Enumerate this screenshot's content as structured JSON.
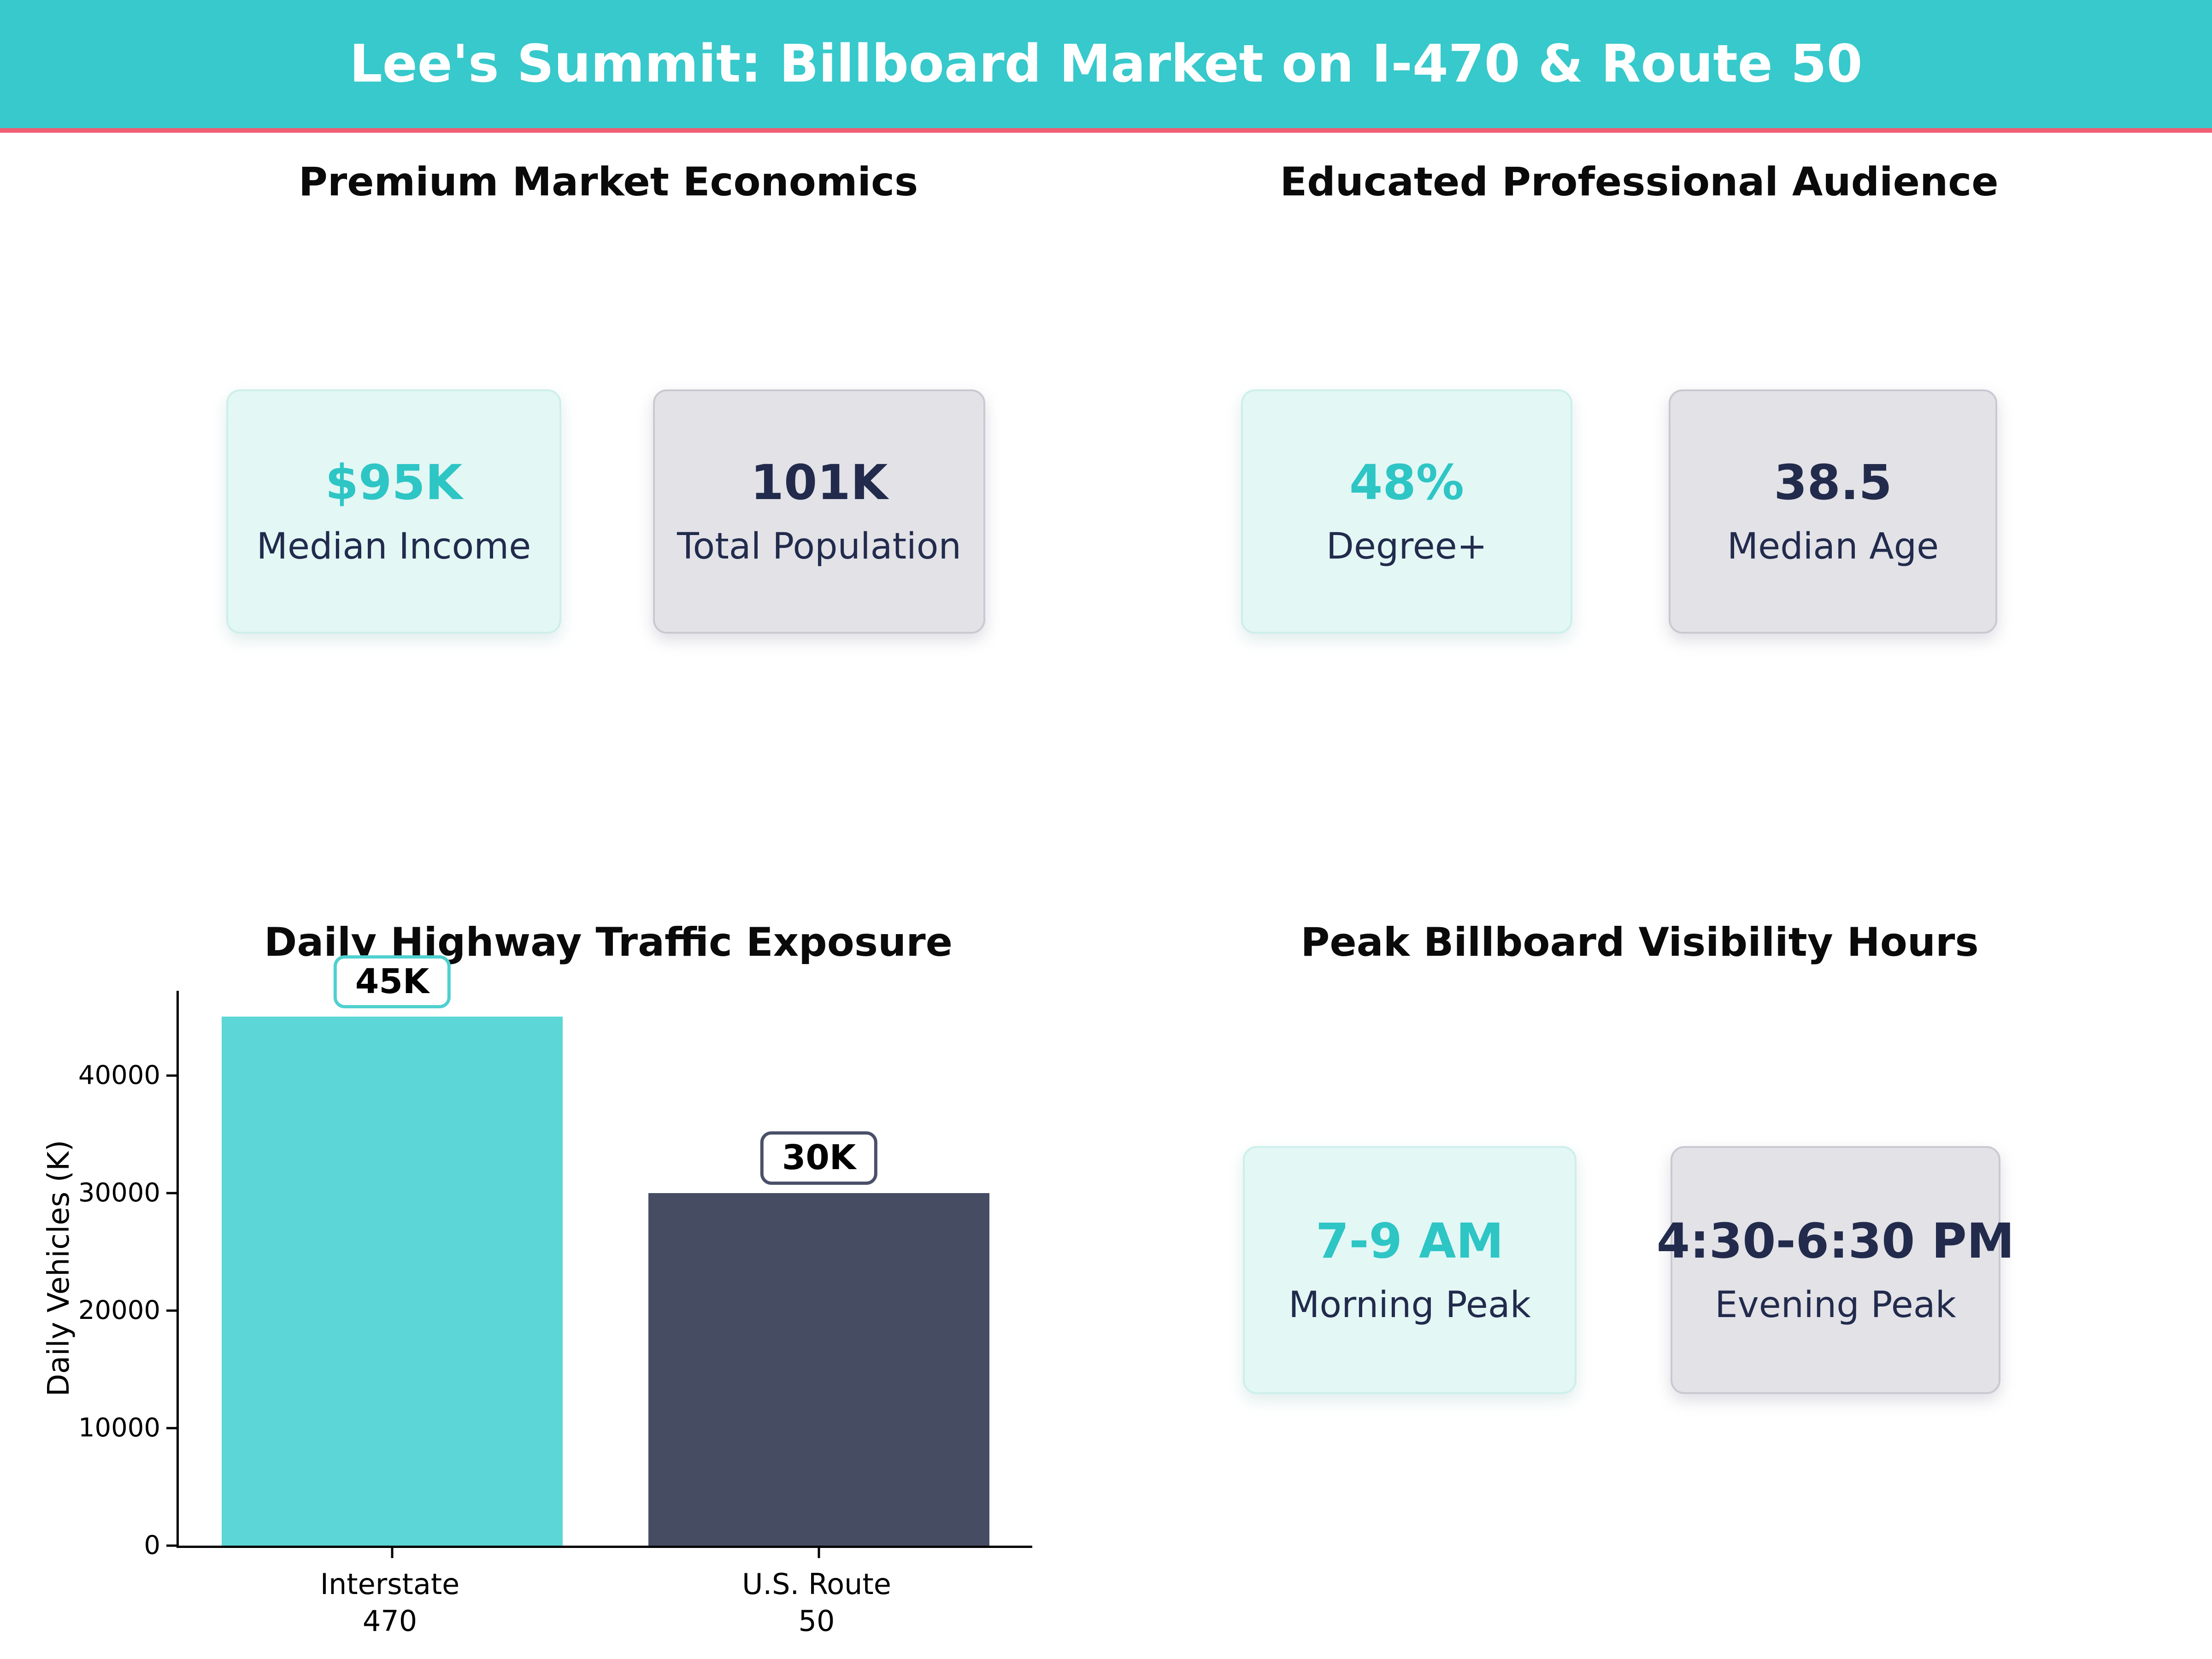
{
  "page": {
    "title": "Lee's Summit: Billboard Market on I-470 & Route 50"
  },
  "colors": {
    "header_bg": "#37C9CB",
    "header_text": "#FFFFFF",
    "divider_pink": "#EF5E74",
    "accent_teal": "#2EC5C5",
    "navy_text": "#222B4C",
    "card_teal_bg": "#E3F7F5",
    "card_gray_bg": "#E2E2E7",
    "bar_teal": "#5CD6D6",
    "bar_navy": "#464D63"
  },
  "sections": {
    "economics": {
      "title": "Premium Market Economics",
      "cards": [
        {
          "value": "$95K",
          "label": "Median Income"
        },
        {
          "value": "101K",
          "label": "Total Population"
        }
      ]
    },
    "audience": {
      "title": "Educated Professional Audience",
      "cards": [
        {
          "value": "48%",
          "label": "Degree+"
        },
        {
          "value": "38.5",
          "label": "Median Age"
        }
      ]
    },
    "traffic": {
      "title": "Daily Highway Traffic Exposure"
    },
    "visibility": {
      "title": "Peak Billboard Visibility Hours",
      "cards": [
        {
          "value": "7-9 AM",
          "label": "Morning Peak"
        },
        {
          "value": "4:30-6:30 PM",
          "label": "Evening Peak"
        }
      ]
    }
  },
  "chart_data": {
    "type": "bar",
    "title": "Daily Highway Traffic Exposure",
    "categories": [
      [
        "Interstate",
        "470"
      ],
      [
        "U.S. Route",
        "50"
      ]
    ],
    "values": [
      45000,
      30000
    ],
    "bar_labels": [
      "45K",
      "30K"
    ],
    "bar_colors": [
      "#5CD6D6",
      "#464D63"
    ],
    "bar_label_border_colors": [
      "#4FD0D0",
      "#4A5068"
    ],
    "xlabel": "",
    "ylabel": "Daily Vehicles (K)",
    "yticks": [
      0,
      10000,
      20000,
      30000,
      40000
    ],
    "ylim": [
      0,
      47200
    ],
    "grid": false,
    "legend": null
  }
}
